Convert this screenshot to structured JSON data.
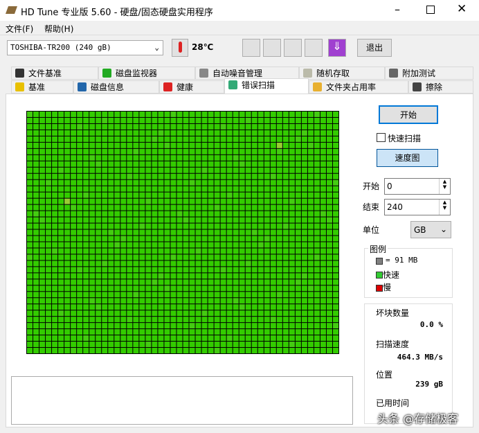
{
  "window": {
    "title": "HD Tune 专业版 5.60 - 硬盘/固态硬盘实用程序"
  },
  "menu": [
    "文件(F)",
    "帮助(H)"
  ],
  "toolbar": {
    "drive": "TOSHIBA-TR200 (240 gB)",
    "temperature": "28℃",
    "exit": "退出"
  },
  "tabs": {
    "row1": [
      "文件基准",
      "磁盘监视器",
      "自动噪音管理",
      "随机存取",
      "附加测试"
    ],
    "row2": [
      "基准",
      "磁盘信息",
      "健康",
      "错误扫描",
      "文件夹占用率",
      "擦除"
    ]
  },
  "panel": {
    "start_button": "开始",
    "quick_scan": "快速扫描",
    "speed_map": "速度图",
    "start_label": "开始",
    "start_value": "0",
    "end_label": "结束",
    "end_value": "240",
    "unit_label": "单位",
    "unit_value": "GB",
    "legend": {
      "title": "图例",
      "block": "= 91 MB",
      "fast": "快速",
      "slow": "慢"
    },
    "stats": {
      "bad_blocks_label": "坏块数量",
      "bad_blocks_value": "0.0 %",
      "speed_label": "扫描速度",
      "speed_value": "464.3 MB/s",
      "position_label": "位置",
      "position_value": "239 gB",
      "elapsed_label": "已用时间"
    }
  },
  "watermark": "头条 @存储极客"
}
